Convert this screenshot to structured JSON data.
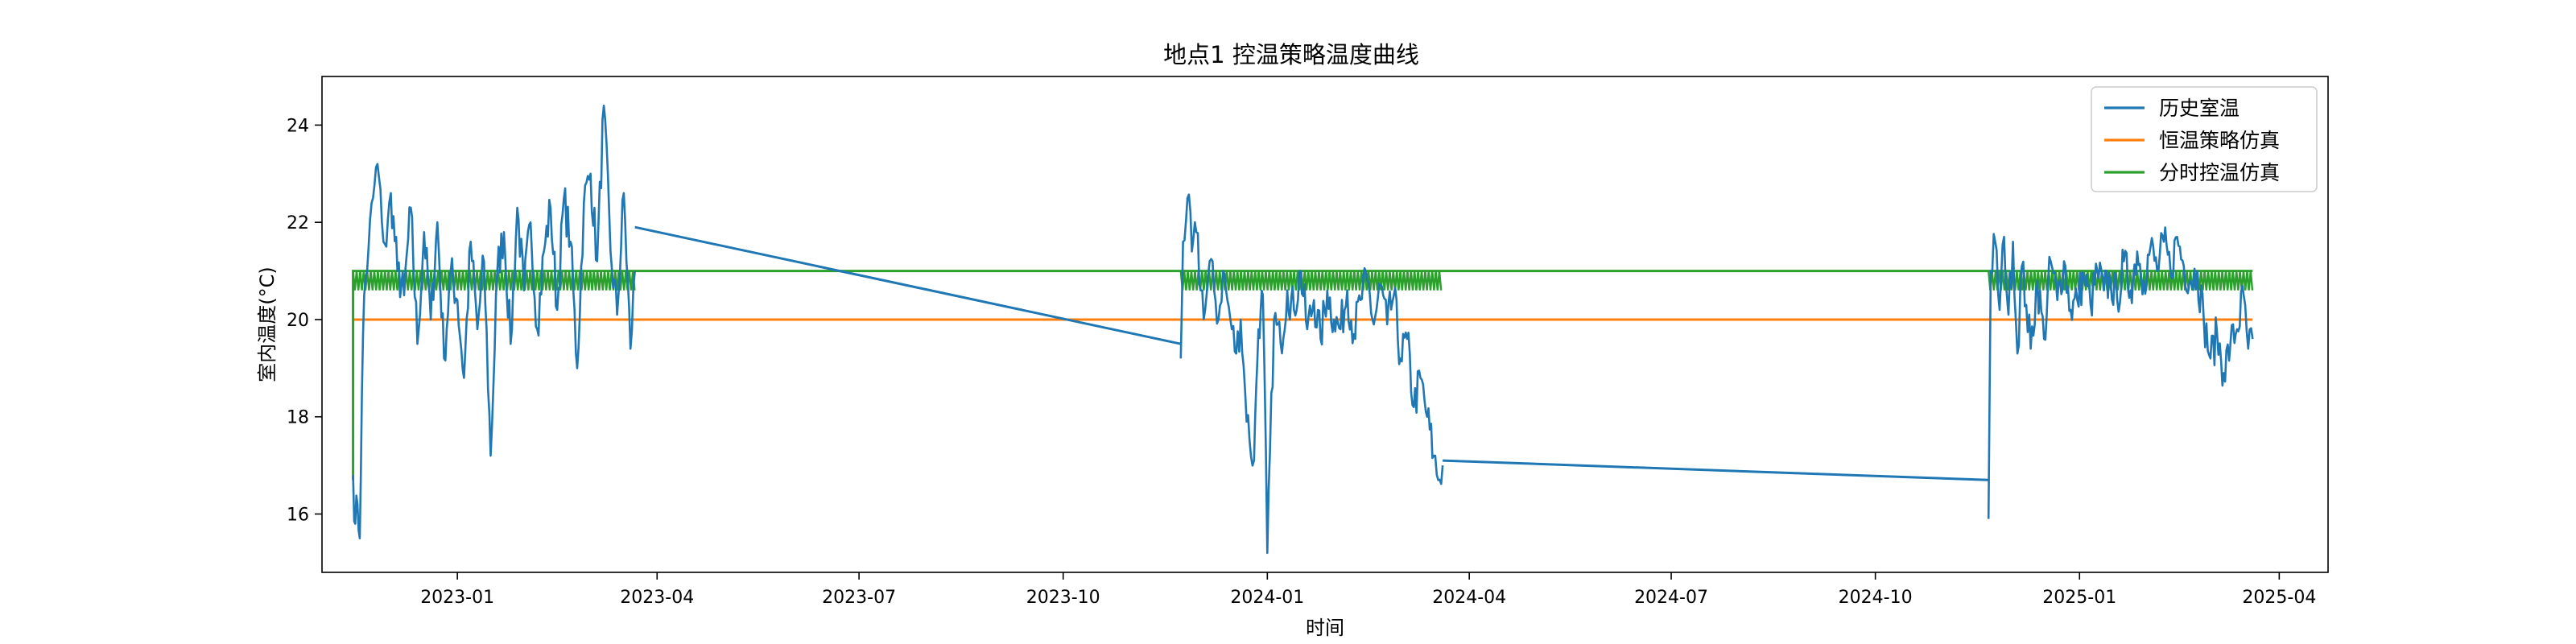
{
  "chart_data": {
    "type": "line",
    "title": "地点1 控温策略温度曲线",
    "xlabel": "时间",
    "ylabel": "室内温度(°C)",
    "xlim": [
      "2022-11-01",
      "2025-04-23"
    ],
    "ylim": [
      14.8,
      25.0
    ],
    "grid": false,
    "legend_position": "top-right",
    "x_ticks": [
      "2023-01",
      "2023-04",
      "2023-07",
      "2023-10",
      "2024-01",
      "2024-04",
      "2024-07",
      "2024-10",
      "2025-01",
      "2025-04"
    ],
    "x_tick_dates": [
      "2023-01-01",
      "2023-04-01",
      "2023-07-01",
      "2023-10-01",
      "2024-01-01",
      "2024-04-01",
      "2024-07-01",
      "2024-10-01",
      "2025-01-01",
      "2025-04-01"
    ],
    "y_ticks": [
      16,
      18,
      20,
      22,
      24
    ],
    "series": [
      {
        "name": "历史室温",
        "color": "#1f77b4",
        "segments": [
          {
            "x": [
              "2022-11-15",
              "2022-11-16",
              "2022-11-17",
              "2022-11-18",
              "2022-11-19",
              "2022-11-20",
              "2022-11-22",
              "2022-11-24",
              "2022-11-26",
              "2022-11-28",
              "2022-11-30",
              "2022-12-02",
              "2022-12-05",
              "2022-12-08",
              "2022-12-11",
              "2022-12-14",
              "2022-12-17",
              "2022-12-20",
              "2022-12-23",
              "2022-12-26",
              "2022-12-29",
              "2023-01-01",
              "2023-01-04",
              "2023-01-07",
              "2023-01-10",
              "2023-01-13",
              "2023-01-16",
              "2023-01-19",
              "2023-01-22",
              "2023-01-25",
              "2023-01-28",
              "2023-01-31",
              "2023-02-03",
              "2023-02-06",
              "2023-02-09",
              "2023-02-12",
              "2023-02-15",
              "2023-02-18",
              "2023-02-21",
              "2023-02-24",
              "2023-02-27",
              "2023-03-02",
              "2023-03-05",
              "2023-03-08",
              "2023-03-11",
              "2023-03-14",
              "2023-03-17",
              "2023-03-20",
              "2023-03-22"
            ],
            "y": [
              16.8,
              15.8,
              16.2,
              15.5,
              18.5,
              20.5,
              21.5,
              22.5,
              23.2,
              22.0,
              21.5,
              22.6,
              21.0,
              20.5,
              22.3,
              19.5,
              21.8,
              20.0,
              22.0,
              19.2,
              21.0,
              20.4,
              18.8,
              21.6,
              19.8,
              21.2,
              17.2,
              21.0,
              21.8,
              19.5,
              22.3,
              20.6,
              22.0,
              19.8,
              21.4,
              22.3,
              20.2,
              22.5,
              21.6,
              19.0,
              22.4,
              23.0,
              21.2,
              24.4,
              21.4,
              20.1,
              22.6,
              19.4,
              21.0
            ]
          },
          {
            "x": [
              "2023-03-22",
              "2023-11-23"
            ],
            "y": [
              21.9,
              19.5
            ]
          },
          {
            "x": [
              "2023-11-23",
              "2023-11-24",
              "2023-11-26",
              "2023-11-28",
              "2023-11-30",
              "2023-12-02",
              "2023-12-04",
              "2023-12-06",
              "2023-12-08",
              "2023-12-10",
              "2023-12-12",
              "2023-12-14",
              "2023-12-16",
              "2023-12-18",
              "2023-12-20",
              "2023-12-22",
              "2023-12-24",
              "2023-12-26",
              "2023-12-27",
              "2023-12-28",
              "2023-12-29",
              "2023-12-30",
              "2024-01-01",
              "2024-01-04",
              "2024-01-07",
              "2024-01-10",
              "2024-01-13",
              "2024-01-16",
              "2024-01-19",
              "2024-01-22",
              "2024-01-25",
              "2024-01-28",
              "2024-01-31",
              "2024-02-03",
              "2024-02-06",
              "2024-02-09",
              "2024-02-12",
              "2024-02-15",
              "2024-02-18",
              "2024-02-21",
              "2024-02-24",
              "2024-02-27",
              "2024-03-01",
              "2024-03-04",
              "2024-03-07",
              "2024-03-10",
              "2024-03-13",
              "2024-03-16",
              "2024-03-18",
              "2024-03-20"
            ],
            "y": [
              19.2,
              21.6,
              22.5,
              21.4,
              21.8,
              20.6,
              20.2,
              21.2,
              20.6,
              20.0,
              21.0,
              20.4,
              19.8,
              19.3,
              20.0,
              18.5,
              17.5,
              17.1,
              18.6,
              19.8,
              20.2,
              20.5,
              15.2,
              20.0,
              19.5,
              20.6,
              20.2,
              21.0,
              19.8,
              20.4,
              19.6,
              20.6,
              20.0,
              19.8,
              20.6,
              19.7,
              20.4,
              20.8,
              19.9,
              20.7,
              19.9,
              20.5,
              19.2,
              19.6,
              18.2,
              18.8,
              18.0,
              17.2,
              16.7,
              17.0
            ]
          },
          {
            "x": [
              "2024-03-20",
              "2024-11-21"
            ],
            "y": [
              17.1,
              16.7
            ]
          },
          {
            "x": [
              "2024-11-21",
              "2024-11-22",
              "2024-11-24",
              "2024-11-26",
              "2024-11-28",
              "2024-11-30",
              "2024-12-02",
              "2024-12-04",
              "2024-12-06",
              "2024-12-08",
              "2024-12-10",
              "2024-12-13",
              "2024-12-16",
              "2024-12-19",
              "2024-12-22",
              "2024-12-25",
              "2024-12-28",
              "2024-12-31",
              "2025-01-03",
              "2025-01-06",
              "2025-01-09",
              "2025-01-12",
              "2025-01-15",
              "2025-01-18",
              "2025-01-21",
              "2025-01-24",
              "2025-01-27",
              "2025-01-30",
              "2025-02-02",
              "2025-02-05",
              "2025-02-08",
              "2025-02-11",
              "2025-02-14",
              "2025-02-17",
              "2025-02-20",
              "2025-02-23",
              "2025-02-26",
              "2025-03-01",
              "2025-03-04",
              "2025-03-07",
              "2025-03-10",
              "2025-03-13",
              "2025-03-16",
              "2025-03-18",
              "2025-03-20"
            ],
            "y": [
              15.9,
              21.0,
              21.6,
              20.2,
              21.7,
              20.1,
              21.6,
              19.3,
              21.1,
              20.3,
              19.4,
              20.8,
              19.6,
              21.2,
              20.4,
              21.2,
              20.2,
              20.4,
              20.9,
              20.3,
              21.0,
              20.6,
              20.8,
              20.4,
              21.2,
              20.6,
              21.4,
              20.8,
              21.5,
              21.0,
              21.6,
              21.0,
              21.7,
              21.1,
              20.8,
              21.0,
              20.0,
              19.2,
              19.7,
              18.9,
              19.5,
              19.8,
              20.5,
              19.4,
              19.6
            ]
          }
        ]
      },
      {
        "name": "恒温策略仿真",
        "color": "#ff7f0e",
        "x": [
          "2022-11-15",
          "2025-03-20"
        ],
        "y": [
          20.0,
          20.0
        ]
      },
      {
        "name": "分时控温仿真",
        "color": "#2ca02c",
        "x": [
          "2022-11-15",
          "2022-11-15",
          "2025-03-20"
        ],
        "y": [
          16.7,
          21.0,
          21.0
        ],
        "oscillation_bands": [
          {
            "x": [
              "2022-11-15",
              "2023-03-22"
            ],
            "y_range": [
              20.6,
              21.0
            ]
          },
          {
            "x": [
              "2023-11-23",
              "2024-03-20"
            ],
            "y_range": [
              20.6,
              21.0
            ]
          },
          {
            "x": [
              "2024-11-21",
              "2025-03-20"
            ],
            "y_range": [
              20.6,
              21.0
            ]
          }
        ]
      }
    ]
  }
}
